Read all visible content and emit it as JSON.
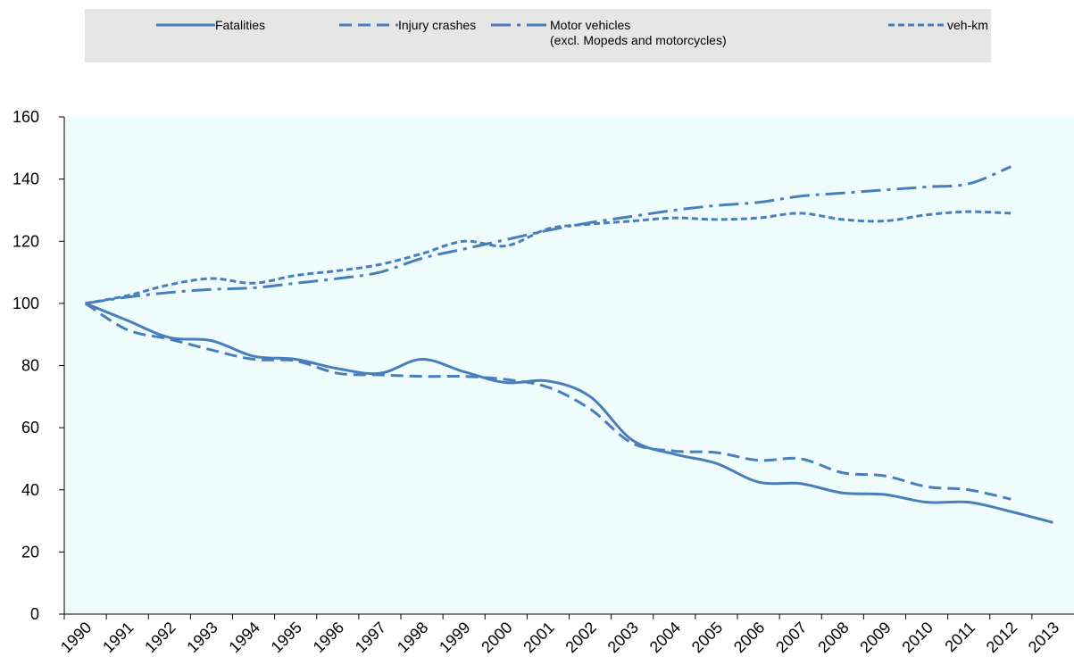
{
  "chart_data": {
    "type": "line",
    "categories": [
      "1990",
      "1991",
      "1992",
      "1993",
      "1994",
      "1995",
      "1996",
      "1997",
      "1998",
      "1999",
      "2000",
      "2001",
      "2002",
      "2003",
      "2004",
      "2005",
      "2006",
      "2007",
      "2008",
      "2009",
      "2010",
      "2011",
      "2012",
      "2013"
    ],
    "series": [
      {
        "name": "Fatalities",
        "color": "#4a7ebb",
        "dash": "solid",
        "values": [
          100,
          94.5,
          89,
          88,
          83,
          82,
          79,
          77.5,
          82,
          78,
          74.5,
          75,
          70,
          56,
          51.5,
          48.5,
          42.5,
          42,
          39,
          38.5,
          36,
          36,
          33,
          29.5
        ]
      },
      {
        "name": "Injury crashes",
        "color": "#4a7ebb",
        "dash": "dashed",
        "values": [
          100,
          91.5,
          88.5,
          85,
          82,
          81.5,
          77.5,
          77,
          76.5,
          76.5,
          75.5,
          73,
          66,
          55,
          52.5,
          52,
          49.5,
          50,
          45.5,
          44.5,
          41,
          40,
          37,
          null
        ]
      },
      {
        "name": "Motor vehicles\n(excl. Mopeds and motorcycles)",
        "color": "#4a7ebb",
        "dash": "dashdot",
        "values": [
          100,
          102,
          103.5,
          104.5,
          105,
          106.5,
          108,
          110,
          114.5,
          117.5,
          120.5,
          123.5,
          126,
          128,
          130,
          131.5,
          132.5,
          134.5,
          135.5,
          136.5,
          137.5,
          138.5,
          144,
          null
        ]
      },
      {
        "name": "veh-km",
        "color": "#4a7ebb",
        "dash": "shortdash",
        "values": [
          100,
          102.5,
          106,
          108,
          106.5,
          109,
          110.5,
          112.5,
          116,
          120,
          118.5,
          124,
          125.5,
          126.5,
          127.5,
          127,
          127.5,
          129,
          127,
          126.5,
          128.5,
          129.5,
          129,
          null
        ]
      }
    ],
    "ylim": [
      0,
      160
    ],
    "yticks": [
      0,
      20,
      40,
      60,
      80,
      100,
      120,
      140,
      160
    ],
    "grid": false,
    "legend": "top"
  }
}
